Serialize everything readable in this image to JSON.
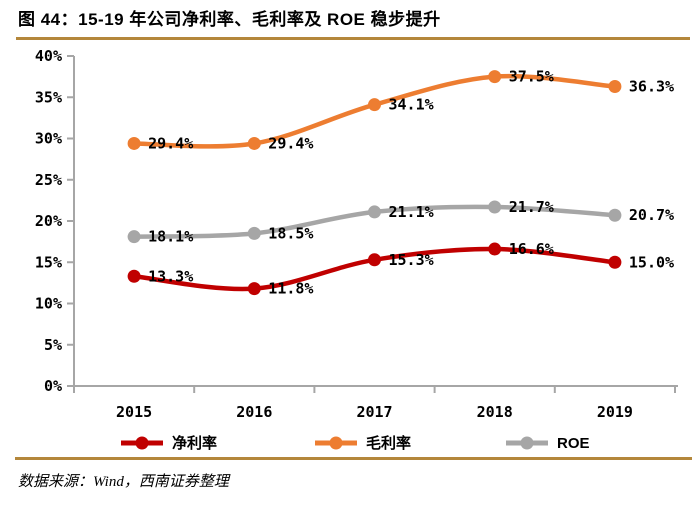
{
  "title": "图 44：15-19 年公司净利率、毛利率及 ROE 稳步提升",
  "source": "数据来源：Wind，西南证券整理",
  "colors": {
    "rule_gold": "#B4873B",
    "axis_gray": "#A6A6A6",
    "net_margin_red": "#C00000",
    "gross_margin_orange": "#ED7D31",
    "roe_gray": "#A6A6A6"
  },
  "chart_data": {
    "type": "line",
    "title": "15-19 年公司净利率、毛利率及 ROE 稳步提升",
    "categories": [
      "2015",
      "2016",
      "2017",
      "2018",
      "2019"
    ],
    "series": [
      {
        "key": "net-margin",
        "name": "净利率",
        "color": "#C00000",
        "values": [
          13.3,
          11.8,
          15.3,
          16.6,
          15.0
        ],
        "labels": [
          "13.3%",
          "11.8%",
          "15.3%",
          "16.6%",
          "15.0%"
        ]
      },
      {
        "key": "gross-margin",
        "name": "毛利率",
        "color": "#ED7D31",
        "values": [
          29.4,
          29.4,
          34.1,
          37.5,
          36.3
        ],
        "labels": [
          "29.4%",
          "29.4%",
          "34.1%",
          "37.5%",
          "36.3%"
        ]
      },
      {
        "key": "roe",
        "name": "ROE",
        "color": "#A6A6A6",
        "values": [
          18.1,
          18.5,
          21.1,
          21.7,
          20.7
        ],
        "labels": [
          "18.1%",
          "18.5%",
          "21.1%",
          "21.7%",
          "20.7%"
        ]
      }
    ],
    "xlabel": "",
    "ylabel": "",
    "ylim": [
      0,
      40
    ],
    "ytick_values": [
      0,
      5,
      10,
      15,
      20,
      25,
      30,
      35,
      40
    ],
    "ytick_labels": [
      "0%",
      "5%",
      "10%",
      "15%",
      "20%",
      "25%",
      "30%",
      "35%",
      "40%"
    ],
    "grid": false,
    "smooth": true,
    "data_labels": true,
    "legend_position": "bottom",
    "legend_order": [
      "净利率",
      "毛利率",
      "ROE"
    ]
  }
}
